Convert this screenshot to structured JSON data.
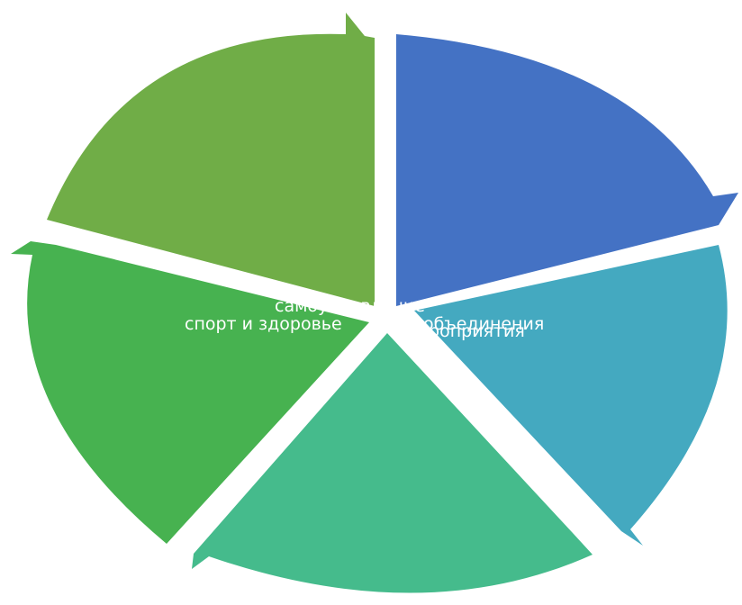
{
  "caption": "",
  "segments": [
    {
      "label": "мероприятия",
      "color": "#4472C4"
    },
    {
      "label": "объединения",
      "color": "#44A9C0"
    },
    {
      "label": "",
      "color": "#45BB8C"
    },
    {
      "label": "спорт и здоровье",
      "color": "#47B250"
    },
    {
      "label": "самоуправление",
      "color": "#70AD47"
    }
  ]
}
